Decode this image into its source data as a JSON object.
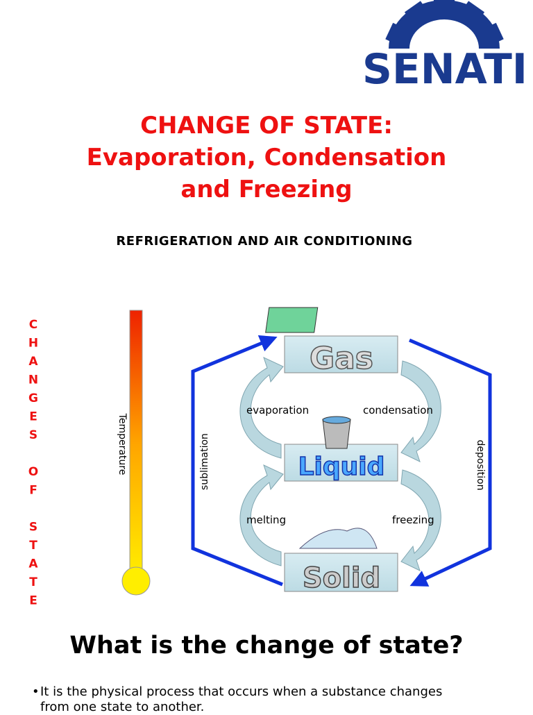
{
  "logo": {
    "text": "SENATI"
  },
  "header": {
    "title_lines": [
      "CHANGE OF STATE:",
      "Evaporation, Condensation",
      "and Freezing"
    ],
    "subtitle": "REFRIGERATION AND AIR CONDITIONING"
  },
  "side_label": "CHANGES OF STATE",
  "diagram": {
    "thermometer_label": "Temperature",
    "states": [
      "Gas",
      "Liquid",
      "Solid"
    ],
    "processes": {
      "evaporation": "evaporation",
      "condensation": "condensation",
      "melting": "melting",
      "freezing": "freezing",
      "sublimation": "sublimation",
      "deposition": "deposition"
    }
  },
  "section": {
    "heading": "What is the change of state?",
    "bullets": [
      "It is the physical process that occurs when a substance changes from one state to another."
    ]
  }
}
